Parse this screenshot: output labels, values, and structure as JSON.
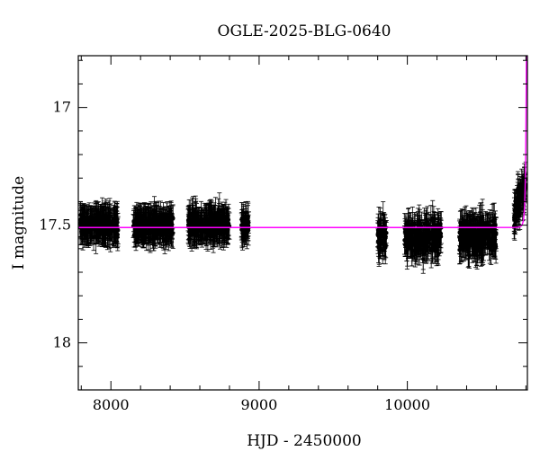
{
  "chart_data": {
    "type": "scatter",
    "title": "OGLE-2025-BLG-0640",
    "xlabel": "HJD - 2450000",
    "ylabel": "I magnitude",
    "xlim": [
      7780,
      10810
    ],
    "ylim": [
      17.2,
      15.6
    ],
    "y_inverted": true,
    "x_ticks": [
      8000,
      9000,
      10000
    ],
    "y_ticks": [
      17,
      17.5,
      18
    ],
    "y_tick_labels": [
      "17",
      "17.5",
      "18"
    ],
    "x_tick_labels": [
      "8000",
      "9000",
      "10000"
    ],
    "grid": false,
    "observation_seasons": [
      {
        "x_start": 7790,
        "x_end": 8050,
        "mag_median": 17.5,
        "scatter": 0.05
      },
      {
        "x_start": 8150,
        "x_end": 8420,
        "mag_median": 17.5,
        "scatter": 0.05
      },
      {
        "x_start": 8520,
        "x_end": 8800,
        "mag_median": 17.5,
        "scatter": 0.05
      },
      {
        "x_start": 8880,
        "x_end": 8930,
        "mag_median": 17.5,
        "scatter": 0.04
      },
      {
        "x_start": 9800,
        "x_end": 9860,
        "mag_median": 17.55,
        "scatter": 0.07
      },
      {
        "x_start": 9980,
        "x_end": 10230,
        "mag_median": 17.55,
        "scatter": 0.08
      },
      {
        "x_start": 10350,
        "x_end": 10600,
        "mag_median": 17.55,
        "scatter": 0.08
      },
      {
        "x_start": 10720,
        "x_end": 10800,
        "mag_median": 17.45,
        "scatter": 0.07
      }
    ],
    "typical_error": 0.06,
    "model": {
      "name": "model",
      "color": "#ff00ff",
      "baseline_mag": 17.51,
      "t0": 10808,
      "tE": 10,
      "u0": 0.3,
      "peak_mag_visible": 16.9
    },
    "data_color": "#000000"
  }
}
